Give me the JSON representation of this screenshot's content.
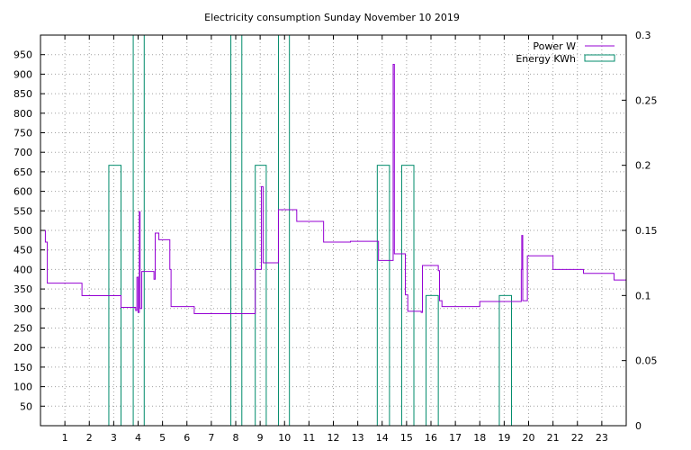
{
  "chart_data": {
    "type": "line",
    "title": "Electricity consumption Sunday November 10 2019",
    "grid": true,
    "legend_position": "top-right",
    "x_ticks": [
      1,
      2,
      3,
      4,
      5,
      6,
      7,
      8,
      9,
      10,
      11,
      12,
      13,
      14,
      15,
      16,
      17,
      18,
      19,
      20,
      21,
      22,
      23
    ],
    "xlim": [
      0,
      24
    ],
    "y_left": {
      "range": [
        0,
        1000
      ],
      "ticks": [
        50,
        100,
        150,
        200,
        250,
        300,
        350,
        400,
        450,
        500,
        550,
        600,
        650,
        700,
        750,
        800,
        850,
        900,
        950
      ]
    },
    "y_right": {
      "range": [
        0,
        0.3
      ],
      "ticks": [
        0,
        0.05,
        0.1,
        0.15,
        0.2,
        0.25,
        0.3
      ],
      "tick_labels": [
        "0",
        "0.05",
        "0.1",
        "0.15",
        "0.2",
        "0.25",
        "0.3"
      ]
    },
    "series": [
      {
        "name": "Power W",
        "kind": "step-line",
        "axis": "left",
        "color": "#9400d3",
        "points": [
          [
            0.0,
            500
          ],
          [
            0.2,
            500
          ],
          [
            0.2,
            470
          ],
          [
            0.28,
            470
          ],
          [
            0.28,
            365
          ],
          [
            1.7,
            365
          ],
          [
            1.7,
            333
          ],
          [
            3.3,
            333
          ],
          [
            3.3,
            303
          ],
          [
            3.9,
            303
          ],
          [
            3.9,
            295
          ],
          [
            3.95,
            295
          ],
          [
            3.95,
            380
          ],
          [
            4.0,
            380
          ],
          [
            4.0,
            290
          ],
          [
            4.05,
            290
          ],
          [
            4.05,
            548
          ],
          [
            4.08,
            548
          ],
          [
            4.08,
            300
          ],
          [
            4.15,
            300
          ],
          [
            4.15,
            395
          ],
          [
            4.65,
            395
          ],
          [
            4.65,
            375
          ],
          [
            4.7,
            375
          ],
          [
            4.7,
            493
          ],
          [
            4.85,
            493
          ],
          [
            4.85,
            476
          ],
          [
            5.3,
            476
          ],
          [
            5.3,
            400
          ],
          [
            5.35,
            400
          ],
          [
            5.35,
            305
          ],
          [
            6.3,
            305
          ],
          [
            6.3,
            287
          ],
          [
            8.8,
            287
          ],
          [
            8.8,
            400
          ],
          [
            9.05,
            400
          ],
          [
            9.05,
            612
          ],
          [
            9.12,
            612
          ],
          [
            9.12,
            417
          ],
          [
            9.75,
            417
          ],
          [
            9.75,
            553
          ],
          [
            10.5,
            553
          ],
          [
            10.5,
            523
          ],
          [
            11.6,
            523
          ],
          [
            11.6,
            470
          ],
          [
            12.7,
            470
          ],
          [
            12.7,
            472
          ],
          [
            13.85,
            472
          ],
          [
            13.85,
            423
          ],
          [
            14.45,
            423
          ],
          [
            14.45,
            925
          ],
          [
            14.5,
            925
          ],
          [
            14.5,
            440
          ],
          [
            14.95,
            440
          ],
          [
            14.95,
            335
          ],
          [
            15.05,
            335
          ],
          [
            15.05,
            293
          ],
          [
            15.6,
            293
          ],
          [
            15.6,
            290
          ],
          [
            15.65,
            290
          ],
          [
            15.65,
            410
          ],
          [
            16.3,
            410
          ],
          [
            16.3,
            397
          ],
          [
            16.35,
            397
          ],
          [
            16.35,
            320
          ],
          [
            16.45,
            320
          ],
          [
            16.45,
            305
          ],
          [
            18.0,
            305
          ],
          [
            18.0,
            318
          ],
          [
            19.7,
            318
          ],
          [
            19.7,
            400
          ],
          [
            19.72,
            400
          ],
          [
            19.72,
            487
          ],
          [
            19.76,
            487
          ],
          [
            19.76,
            320
          ],
          [
            19.95,
            320
          ],
          [
            19.95,
            435
          ],
          [
            21.0,
            435
          ],
          [
            21.0,
            400
          ],
          [
            22.25,
            400
          ],
          [
            22.25,
            390
          ],
          [
            23.5,
            390
          ],
          [
            23.5,
            373
          ],
          [
            24.0,
            373
          ]
        ]
      },
      {
        "name": "Energy KWh",
        "kind": "bars",
        "axis": "right",
        "color": "#008b6b",
        "bars": [
          {
            "x0": 2.8,
            "x1": 3.3,
            "value": 0.2
          },
          {
            "x0": 3.8,
            "x1": 4.25,
            "value": 0.3
          },
          {
            "x0": 7.8,
            "x1": 8.25,
            "value": 0.3
          },
          {
            "x0": 8.8,
            "x1": 9.25,
            "value": 0.2
          },
          {
            "x0": 9.75,
            "x1": 10.2,
            "value": 0.3
          },
          {
            "x0": 13.8,
            "x1": 14.3,
            "value": 0.2
          },
          {
            "x0": 14.8,
            "x1": 15.3,
            "value": 0.2
          },
          {
            "x0": 15.8,
            "x1": 16.3,
            "value": 0.1
          },
          {
            "x0": 18.8,
            "x1": 19.3,
            "value": 0.1
          }
        ]
      }
    ]
  }
}
